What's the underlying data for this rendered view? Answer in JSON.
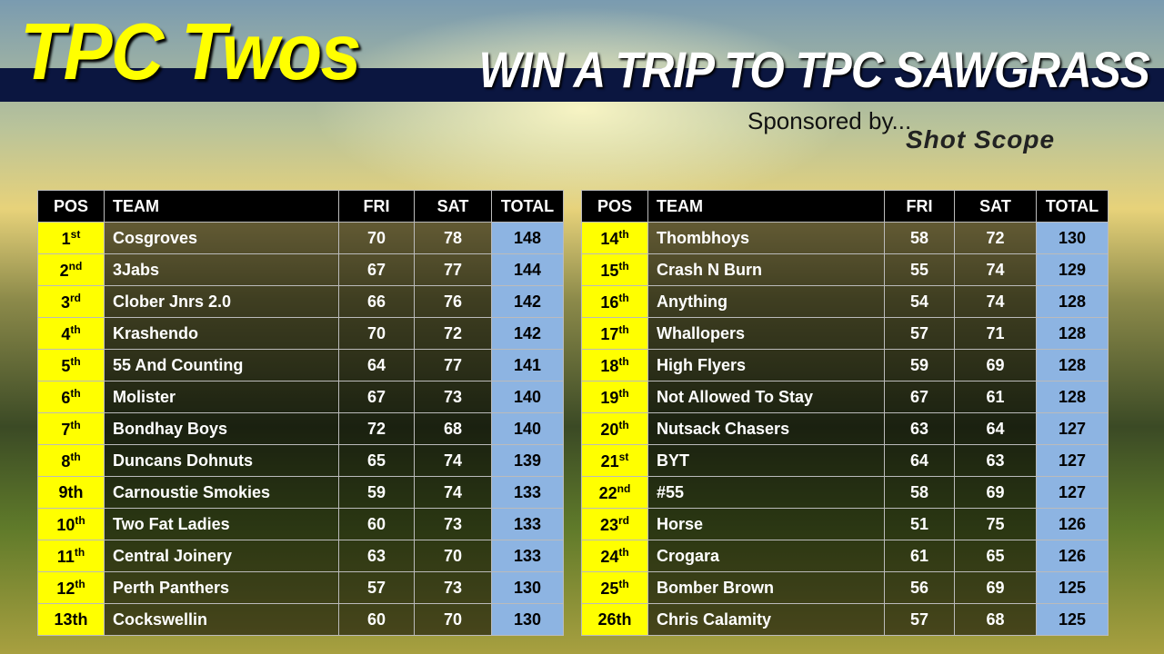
{
  "header": {
    "title": "TPC Twos",
    "subtitle": "WIN A TRIP TO TPC SAWGRASS",
    "sponsor_text": "Sponsored by...",
    "sponsor_logo": "Shot Scope"
  },
  "tables": [
    {
      "columns": [
        "POS",
        "TEAM",
        "FRI",
        "SAT",
        "TOTAL"
      ],
      "rows": [
        {
          "pos": "1",
          "sup": "st",
          "team": "Cosgroves",
          "fri": 70,
          "sat": 78,
          "total": 148
        },
        {
          "pos": "2",
          "sup": "nd",
          "team": "3Jabs",
          "fri": 67,
          "sat": 77,
          "total": 144
        },
        {
          "pos": "3",
          "sup": "rd",
          "team": "Clober Jnrs 2.0",
          "fri": 66,
          "sat": 76,
          "total": 142
        },
        {
          "pos": "4",
          "sup": "th",
          "team": "Krashendo",
          "fri": 70,
          "sat": 72,
          "total": 142
        },
        {
          "pos": "5",
          "sup": "th",
          "team": "55 And Counting",
          "fri": 64,
          "sat": 77,
          "total": 141
        },
        {
          "pos": "6",
          "sup": "th",
          "team": "Molister",
          "fri": 67,
          "sat": 73,
          "total": 140
        },
        {
          "pos": "7",
          "sup": "th",
          "team": "Bondhay Boys",
          "fri": 72,
          "sat": 68,
          "total": 140
        },
        {
          "pos": "8",
          "sup": "th",
          "team": "Duncans Dohnuts",
          "fri": 65,
          "sat": 74,
          "total": 139
        },
        {
          "pos": "9th",
          "team": "Carnoustie Smokies",
          "fri": 59,
          "sat": 74,
          "total": 133
        },
        {
          "pos": "10",
          "sup": "th",
          "team": "Two Fat Ladies",
          "fri": 60,
          "sat": 73,
          "total": 133
        },
        {
          "pos": "11",
          "sup": "th",
          "team": "Central Joinery",
          "fri": 63,
          "sat": 70,
          "total": 133
        },
        {
          "pos": "12",
          "sup": "th",
          "team": "Perth Panthers",
          "fri": 57,
          "sat": 73,
          "total": 130
        },
        {
          "pos": "13th",
          "team": "Cockswellin",
          "fri": 60,
          "sat": 70,
          "total": 130
        }
      ]
    },
    {
      "columns": [
        "POS",
        "TEAM",
        "FRI",
        "SAT",
        "TOTAL"
      ],
      "rows": [
        {
          "pos": "14",
          "sup": "th",
          "team": "Thombhoys",
          "fri": 58,
          "sat": 72,
          "total": 130
        },
        {
          "pos": "15",
          "sup": "th",
          "team": "Crash N Burn",
          "fri": 55,
          "sat": 74,
          "total": 129
        },
        {
          "pos": "16",
          "sup": "th",
          "team": "Anything",
          "fri": 54,
          "sat": 74,
          "total": 128
        },
        {
          "pos": "17",
          "sup": "th",
          "team": "Whallopers",
          "fri": 57,
          "sat": 71,
          "total": 128
        },
        {
          "pos": "18",
          "sup": "th",
          "team": "High Flyers",
          "fri": 59,
          "sat": 69,
          "total": 128
        },
        {
          "pos": "19",
          "sup": "th",
          "team": "Not Allowed To Stay",
          "fri": 67,
          "sat": 61,
          "total": 128
        },
        {
          "pos": "20",
          "sup": "th",
          "team": "Nutsack Chasers",
          "fri": 63,
          "sat": 64,
          "total": 127
        },
        {
          "pos": "21",
          "sup": "st",
          "team": "BYT",
          "fri": 64,
          "sat": 63,
          "total": 127
        },
        {
          "pos": "22",
          "sup": "nd",
          "team": "#55",
          "fri": 58,
          "sat": 69,
          "total": 127
        },
        {
          "pos": "23",
          "sup": "rd",
          "team": "Horse",
          "fri": 51,
          "sat": 75,
          "total": 126
        },
        {
          "pos": "24",
          "sup": "th",
          "team": "Crogara",
          "fri": 61,
          "sat": 65,
          "total": 126
        },
        {
          "pos": "25",
          "sup": "th",
          "team": "Bomber Brown",
          "fri": 56,
          "sat": 69,
          "total": 125
        },
        {
          "pos": "26th",
          "team": "Chris Calamity",
          "fri": 57,
          "sat": 68,
          "total": 125
        }
      ]
    }
  ]
}
